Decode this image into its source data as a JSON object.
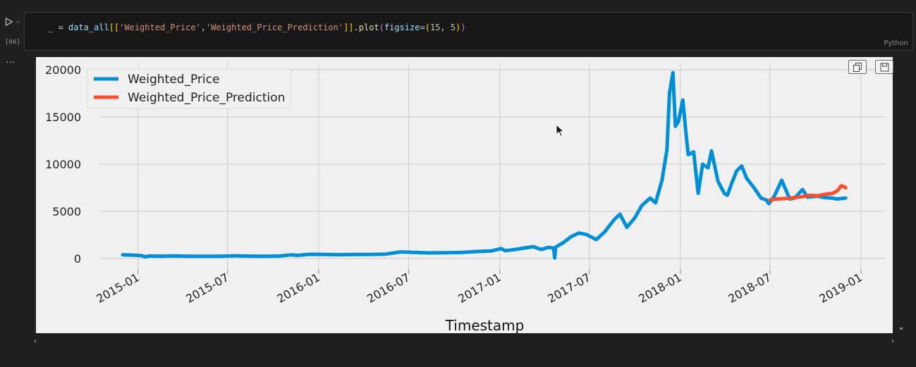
{
  "cell": {
    "execution_count": "[66]",
    "language": "Python",
    "code_tokens": [
      {
        "t": "_ ",
        "c": "tk-var"
      },
      {
        "t": "= ",
        "c": "tk-op"
      },
      {
        "t": "data_all",
        "c": "tk-var"
      },
      {
        "t": "[[",
        "c": "tk-br"
      },
      {
        "t": "'Weighted_Price'",
        "c": "tk-str"
      },
      {
        "t": ",",
        "c": "tk-op"
      },
      {
        "t": "'Weighted_Price_Prediction'",
        "c": "tk-str"
      },
      {
        "t": "]]",
        "c": "tk-br"
      },
      {
        "t": ".",
        "c": "tk-op"
      },
      {
        "t": "plot",
        "c": "tk-fn"
      },
      {
        "t": "(",
        "c": "tk-br2"
      },
      {
        "t": "figsize",
        "c": "tk-var"
      },
      {
        "t": "=",
        "c": "tk-op"
      },
      {
        "t": "(",
        "c": "tk-br"
      },
      {
        "t": "15",
        "c": "tk-num"
      },
      {
        "t": ", ",
        "c": "tk-op"
      },
      {
        "t": "5",
        "c": "tk-num"
      },
      {
        "t": ")",
        "c": "tk-br"
      },
      {
        "t": ")",
        "c": "tk-br2"
      }
    ]
  },
  "gutter": {
    "more_label": "…"
  },
  "output_toolbar": {
    "copy_icon": "copy-icon",
    "save_icon": "save-icon"
  },
  "colors": {
    "series1": "#008fd5",
    "series2": "#fc4f30",
    "plot_bg": "#f0f0f0",
    "grid": "#cbcbcb"
  },
  "chart_data": {
    "type": "line",
    "xlabel": "Timestamp",
    "ylabel": "",
    "x_type": "date",
    "xlim": [
      "2014-10-15",
      "2019-02-20"
    ],
    "ylim": [
      -1200,
      20600
    ],
    "yticks": [
      0,
      5000,
      10000,
      15000,
      20000
    ],
    "xticks": [
      "2015-01",
      "2015-07",
      "2016-01",
      "2016-07",
      "2017-01",
      "2017-07",
      "2018-01",
      "2018-07",
      "2019-01"
    ],
    "grid": true,
    "legend": "top-left",
    "series": [
      {
        "name": "Weighted_Price",
        "color": "#008fd5",
        "points": [
          [
            "2014-12-01",
            380
          ],
          [
            "2014-12-20",
            360
          ],
          [
            "2015-01-08",
            300
          ],
          [
            "2015-01-15",
            180
          ],
          [
            "2015-01-25",
            260
          ],
          [
            "2015-02-15",
            240
          ],
          [
            "2015-03-15",
            270
          ],
          [
            "2015-04-15",
            235
          ],
          [
            "2015-05-15",
            235
          ],
          [
            "2015-06-15",
            240
          ],
          [
            "2015-07-15",
            285
          ],
          [
            "2015-08-15",
            245
          ],
          [
            "2015-09-15",
            235
          ],
          [
            "2015-10-15",
            265
          ],
          [
            "2015-11-05",
            380
          ],
          [
            "2015-11-20",
            330
          ],
          [
            "2015-12-15",
            440
          ],
          [
            "2016-01-15",
            420
          ],
          [
            "2016-02-15",
            400
          ],
          [
            "2016-03-15",
            420
          ],
          [
            "2016-04-15",
            430
          ],
          [
            "2016-05-15",
            460
          ],
          [
            "2016-06-15",
            700
          ],
          [
            "2016-07-10",
            650
          ],
          [
            "2016-08-10",
            590
          ],
          [
            "2016-09-15",
            610
          ],
          [
            "2016-10-15",
            640
          ],
          [
            "2016-11-15",
            730
          ],
          [
            "2016-12-15",
            800
          ],
          [
            "2017-01-04",
            1050
          ],
          [
            "2017-01-12",
            820
          ],
          [
            "2017-02-01",
            950
          ],
          [
            "2017-02-25",
            1150
          ],
          [
            "2017-03-10",
            1250
          ],
          [
            "2017-03-25",
            950
          ],
          [
            "2017-04-10",
            1180
          ],
          [
            "2017-04-20",
            1100
          ],
          [
            "2017-04-22",
            50
          ],
          [
            "2017-04-24",
            1200
          ],
          [
            "2017-05-10",
            1700
          ],
          [
            "2017-05-25",
            2300
          ],
          [
            "2017-06-10",
            2700
          ],
          [
            "2017-06-25",
            2550
          ],
          [
            "2017-07-15",
            2000
          ],
          [
            "2017-08-01",
            2800
          ],
          [
            "2017-08-20",
            4100
          ],
          [
            "2017-09-01",
            4700
          ],
          [
            "2017-09-15",
            3300
          ],
          [
            "2017-10-01",
            4300
          ],
          [
            "2017-10-15",
            5600
          ],
          [
            "2017-11-01",
            6400
          ],
          [
            "2017-11-12",
            5900
          ],
          [
            "2017-11-25",
            8300
          ],
          [
            "2017-12-05",
            11500
          ],
          [
            "2017-12-10",
            17500
          ],
          [
            "2017-12-17",
            19700
          ],
          [
            "2017-12-22",
            14000
          ],
          [
            "2017-12-28",
            14500
          ],
          [
            "2018-01-06",
            16800
          ],
          [
            "2018-01-12",
            13500
          ],
          [
            "2018-01-17",
            11000
          ],
          [
            "2018-01-28",
            11300
          ],
          [
            "2018-02-06",
            6900
          ],
          [
            "2018-02-15",
            10000
          ],
          [
            "2018-02-26",
            9600
          ],
          [
            "2018-03-05",
            11400
          ],
          [
            "2018-03-18",
            8200
          ],
          [
            "2018-03-31",
            6900
          ],
          [
            "2018-04-06",
            6700
          ],
          [
            "2018-04-15",
            8000
          ],
          [
            "2018-04-25",
            9300
          ],
          [
            "2018-05-05",
            9800
          ],
          [
            "2018-05-15",
            8500
          ],
          [
            "2018-05-30",
            7500
          ],
          [
            "2018-06-13",
            6400
          ],
          [
            "2018-06-24",
            6200
          ],
          [
            "2018-06-29",
            5800
          ],
          [
            "2018-07-10",
            6600
          ],
          [
            "2018-07-25",
            8300
          ],
          [
            "2018-08-10",
            6300
          ],
          [
            "2018-08-20",
            6400
          ],
          [
            "2018-09-05",
            7300
          ],
          [
            "2018-09-15",
            6500
          ],
          [
            "2018-10-05",
            6600
          ],
          [
            "2018-10-20",
            6450
          ],
          [
            "2018-11-05",
            6400
          ],
          [
            "2018-11-13",
            6300
          ],
          [
            "2018-12-01",
            6400
          ]
        ]
      },
      {
        "name": "Weighted_Price_Prediction",
        "color": "#fc4f30",
        "points": [
          [
            "2018-07-01",
            6200
          ],
          [
            "2018-07-15",
            6300
          ],
          [
            "2018-08-01",
            6350
          ],
          [
            "2018-08-20",
            6450
          ],
          [
            "2018-09-05",
            6550
          ],
          [
            "2018-09-20",
            6700
          ],
          [
            "2018-10-05",
            6650
          ],
          [
            "2018-10-20",
            6800
          ],
          [
            "2018-11-05",
            6900
          ],
          [
            "2018-11-15",
            7200
          ],
          [
            "2018-11-22",
            7700
          ],
          [
            "2018-11-28",
            7600
          ],
          [
            "2018-12-01",
            7500
          ]
        ]
      }
    ]
  }
}
